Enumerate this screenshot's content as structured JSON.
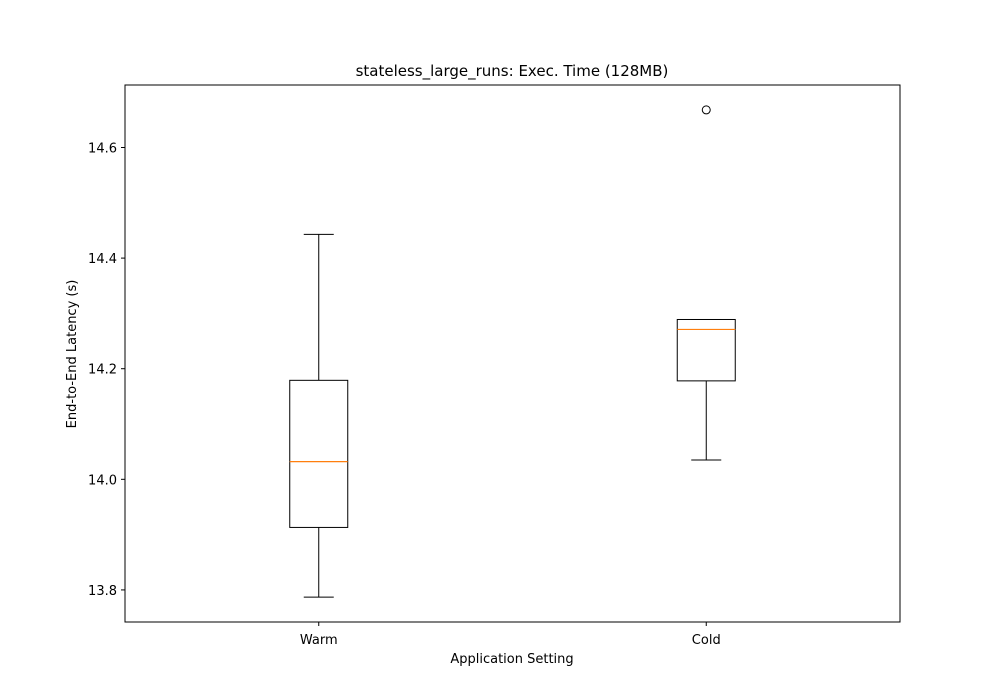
{
  "chart_data": {
    "type": "box",
    "title": "stateless_large_runs: Exec. Time (128MB)",
    "xlabel": "Application Setting",
    "ylabel": "End-to-End Latency (s)",
    "ylim": [
      13.742,
      14.713
    ],
    "yticks": [
      "13.8",
      "14.0",
      "14.2",
      "14.4",
      "14.6"
    ],
    "categories": [
      "Warm",
      "Cold"
    ],
    "boxes": [
      {
        "category": "Warm",
        "whisker_low": 13.787,
        "q1": 13.913,
        "median": 14.032,
        "q3": 14.179,
        "whisker_high": 14.443,
        "outliers": []
      },
      {
        "category": "Cold",
        "whisker_low": 14.035,
        "q1": 14.178,
        "median": 14.271,
        "q3": 14.289,
        "whisker_high": 14.289,
        "outliers": [
          14.668
        ]
      }
    ],
    "box_color": "#000000",
    "median_color": "#ff7f0e",
    "grid": false,
    "legend": "none"
  }
}
